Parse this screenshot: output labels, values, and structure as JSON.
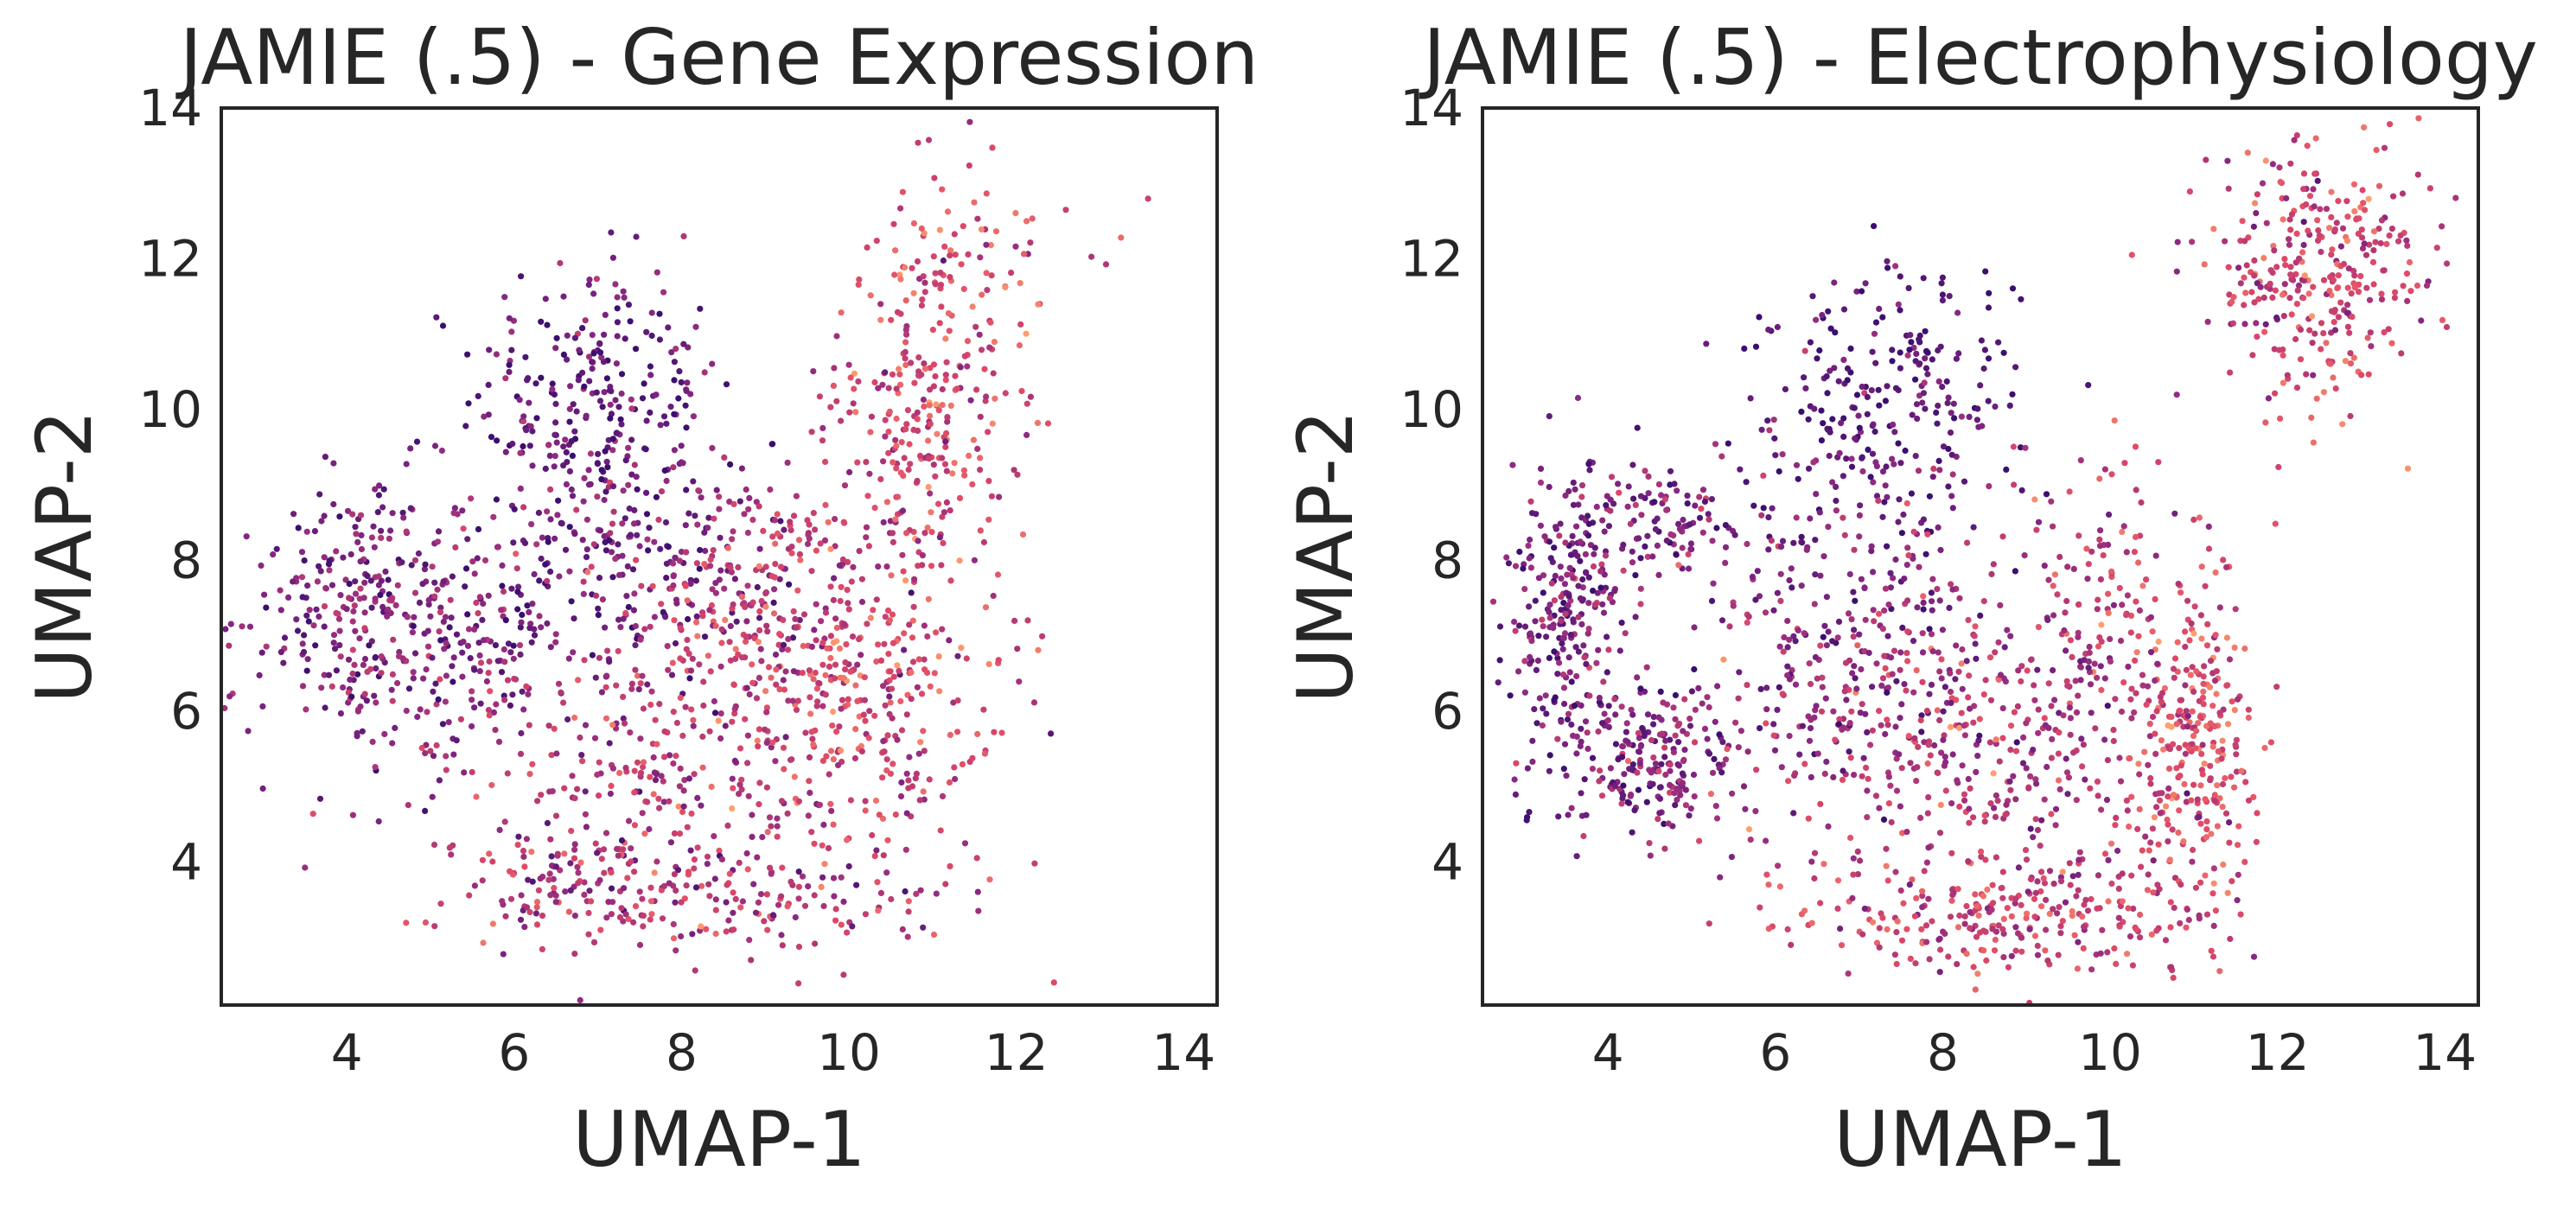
{
  "chart_data": [
    {
      "type": "scatter",
      "title": "JAMIE (.5) - Gene Expression",
      "xlabel": "UMAP-1",
      "ylabel": "UMAP-2",
      "xlim": [
        2.5,
        14.4
      ],
      "ylim": [
        2.1,
        14.0
      ],
      "xticks": [
        "4",
        "6",
        "8",
        "10",
        "12",
        "14"
      ],
      "yticks": [
        "4",
        "6",
        "8",
        "10",
        "12",
        "14"
      ],
      "grid": false,
      "colormap": "magma",
      "point_color_range": [
        "#3b0f70",
        "#8c2981",
        "#de4968",
        "#fe9f6d"
      ],
      "regions": [
        {
          "x": 7.0,
          "y": 10.2,
          "sx": 0.75,
          "sy": 0.9,
          "n": 240,
          "c": 0.18
        },
        {
          "x": 7.3,
          "y": 8.1,
          "sx": 0.9,
          "sy": 0.8,
          "n": 220,
          "c": 0.22
        },
        {
          "x": 4.2,
          "y": 7.3,
          "sx": 0.75,
          "sy": 1.0,
          "n": 280,
          "c": 0.3
        },
        {
          "x": 5.5,
          "y": 7.0,
          "sx": 0.7,
          "sy": 1.0,
          "n": 150,
          "c": 0.32
        },
        {
          "x": 10.8,
          "y": 9.9,
          "sx": 0.55,
          "sy": 1.0,
          "n": 240,
          "c": 0.6
        },
        {
          "x": 11.4,
          "y": 11.8,
          "sx": 0.5,
          "sy": 0.7,
          "n": 80,
          "c": 0.66
        },
        {
          "x": 9.0,
          "y": 7.5,
          "sx": 0.9,
          "sy": 0.8,
          "n": 230,
          "c": 0.5
        },
        {
          "x": 10.3,
          "y": 6.1,
          "sx": 0.9,
          "sy": 1.2,
          "n": 300,
          "c": 0.62
        },
        {
          "x": 7.7,
          "y": 5.1,
          "sx": 1.2,
          "sy": 1.0,
          "n": 280,
          "c": 0.48
        },
        {
          "x": 8.3,
          "y": 3.5,
          "sx": 1.4,
          "sy": 0.4,
          "n": 160,
          "c": 0.5
        },
        {
          "x": 6.6,
          "y": 3.6,
          "sx": 0.6,
          "sy": 0.5,
          "n": 70,
          "c": 0.55
        },
        {
          "x": 12.6,
          "y": 12.2,
          "sx": 0.6,
          "sy": 0.5,
          "n": 10,
          "c": 0.7
        }
      ]
    },
    {
      "type": "scatter",
      "title": "JAMIE (.5) - Electrophysiology",
      "xlabel": "UMAP-1",
      "ylabel": "UMAP-2",
      "xlim": [
        2.5,
        14.4
      ],
      "ylim": [
        2.1,
        14.0
      ],
      "xticks": [
        "4",
        "6",
        "8",
        "10",
        "12",
        "14"
      ],
      "yticks": [
        "4",
        "6",
        "8",
        "10",
        "12",
        "14"
      ],
      "grid": false,
      "colormap": "magma",
      "point_color_range": [
        "#3b0f70",
        "#8c2981",
        "#de4968",
        "#fe9f6d"
      ],
      "regions": [
        {
          "x": 7.3,
          "y": 10.0,
          "sx": 0.8,
          "sy": 0.9,
          "n": 260,
          "c": 0.15
        },
        {
          "x": 3.5,
          "y": 7.2,
          "sx": 0.35,
          "sy": 1.0,
          "n": 260,
          "c": 0.25
        },
        {
          "x": 4.6,
          "y": 5.4,
          "sx": 0.55,
          "sy": 0.45,
          "n": 220,
          "c": 0.3
        },
        {
          "x": 4.6,
          "y": 8.5,
          "sx": 0.5,
          "sy": 0.4,
          "n": 110,
          "c": 0.28
        },
        {
          "x": 12.5,
          "y": 11.8,
          "sx": 0.7,
          "sy": 0.8,
          "n": 320,
          "c": 0.6
        },
        {
          "x": 11.0,
          "y": 5.6,
          "sx": 0.35,
          "sy": 1.0,
          "n": 260,
          "c": 0.66
        },
        {
          "x": 8.8,
          "y": 3.3,
          "sx": 1.3,
          "sy": 0.4,
          "n": 280,
          "c": 0.58
        },
        {
          "x": 8.2,
          "y": 5.6,
          "sx": 1.3,
          "sy": 1.0,
          "n": 400,
          "c": 0.46
        },
        {
          "x": 6.8,
          "y": 7.3,
          "sx": 0.9,
          "sy": 0.9,
          "n": 200,
          "c": 0.3
        },
        {
          "x": 9.8,
          "y": 7.5,
          "sx": 0.7,
          "sy": 0.9,
          "n": 150,
          "c": 0.55
        }
      ]
    }
  ]
}
